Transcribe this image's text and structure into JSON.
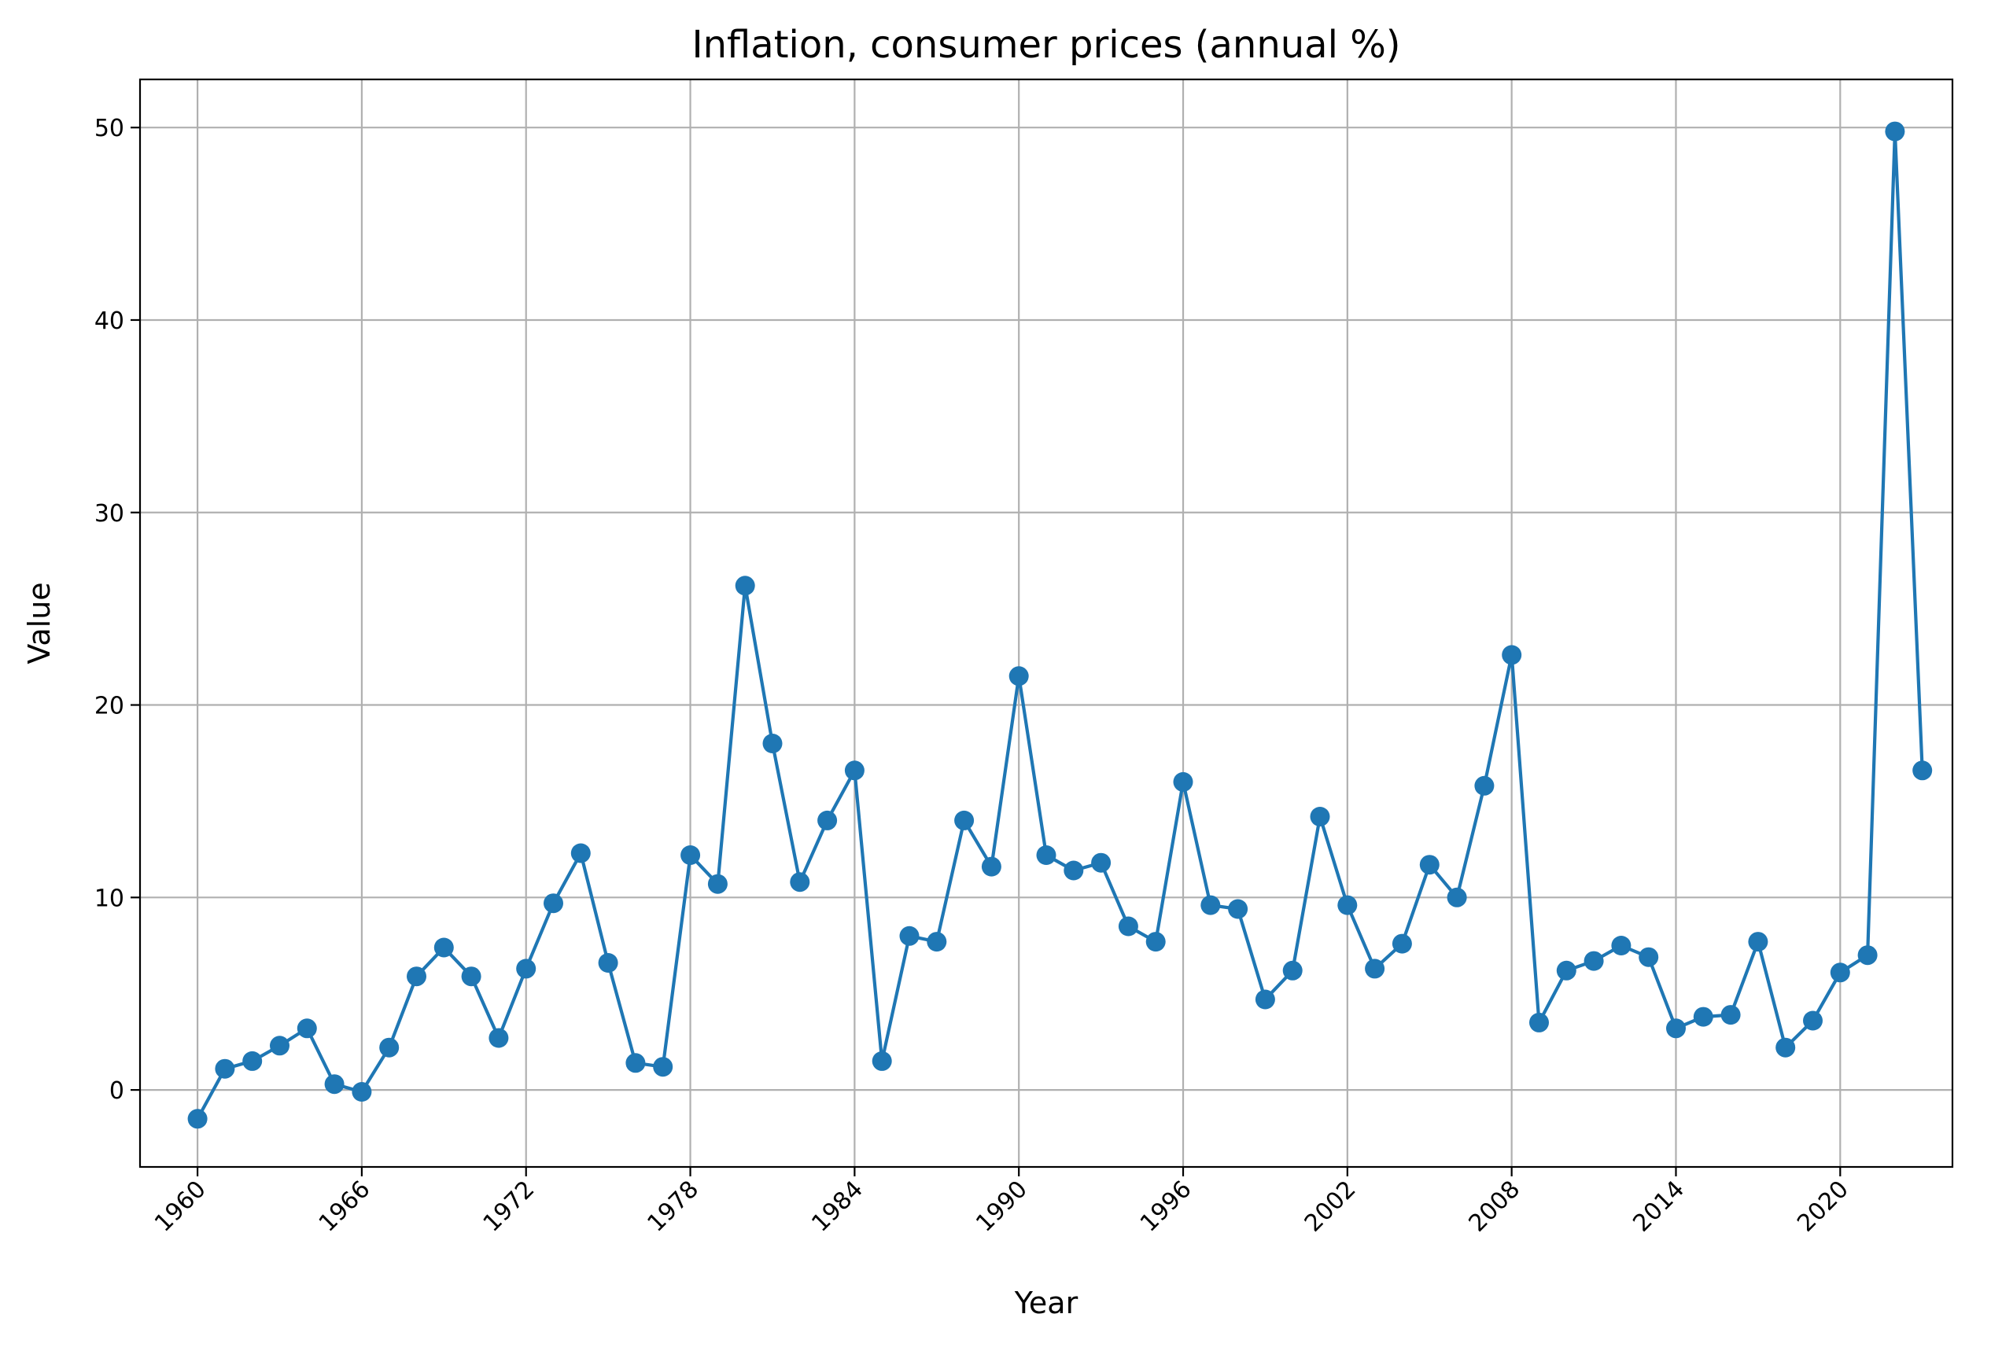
{
  "chart_data": {
    "type": "line",
    "title": "Inflation, consumer prices (annual %)",
    "xlabel": "Year",
    "ylabel": "Value",
    "xlim": [
      1957.9,
      2024.1
    ],
    "ylim": [
      -4.0,
      52.5
    ],
    "x_ticks": [
      "1960",
      "1966",
      "1972",
      "1978",
      "1984",
      "1990",
      "1996",
      "2002",
      "2008",
      "2014",
      "2020"
    ],
    "y_ticks": [
      "0",
      "10",
      "20",
      "30",
      "40",
      "50"
    ],
    "grid": true,
    "legend": "none",
    "series": [
      {
        "color": "#1f77b4",
        "marker": "circle",
        "x": [
          1960,
          1961,
          1962,
          1963,
          1964,
          1965,
          1966,
          1967,
          1968,
          1969,
          1970,
          1971,
          1972,
          1973,
          1974,
          1975,
          1976,
          1977,
          1978,
          1979,
          1980,
          1981,
          1982,
          1983,
          1984,
          1985,
          1986,
          1987,
          1988,
          1989,
          1990,
          1991,
          1992,
          1993,
          1994,
          1995,
          1996,
          1997,
          1998,
          1999,
          2000,
          2001,
          2002,
          2003,
          2004,
          2005,
          2006,
          2007,
          2008,
          2009,
          2010,
          2011,
          2012,
          2013,
          2014,
          2015,
          2016,
          2017,
          2018,
          2019,
          2020,
          2021,
          2022,
          2023
        ],
        "values": [
          -1.5,
          1.1,
          1.5,
          2.3,
          3.2,
          0.3,
          -0.1,
          2.2,
          5.9,
          7.4,
          5.9,
          2.7,
          6.3,
          9.7,
          12.3,
          6.6,
          1.4,
          1.2,
          12.2,
          10.7,
          26.2,
          18.0,
          10.8,
          14.0,
          16.6,
          1.5,
          8.0,
          7.7,
          14.0,
          11.6,
          21.5,
          12.2,
          11.4,
          11.8,
          8.5,
          7.7,
          16.0,
          9.6,
          9.4,
          4.7,
          6.2,
          14.2,
          9.6,
          6.3,
          7.6,
          11.7,
          10.0,
          15.8,
          22.6,
          3.5,
          6.2,
          6.7,
          7.5,
          6.9,
          3.2,
          3.8,
          3.9,
          7.7,
          2.2,
          3.6,
          6.1,
          7.0,
          49.8,
          16.6
        ]
      }
    ]
  }
}
